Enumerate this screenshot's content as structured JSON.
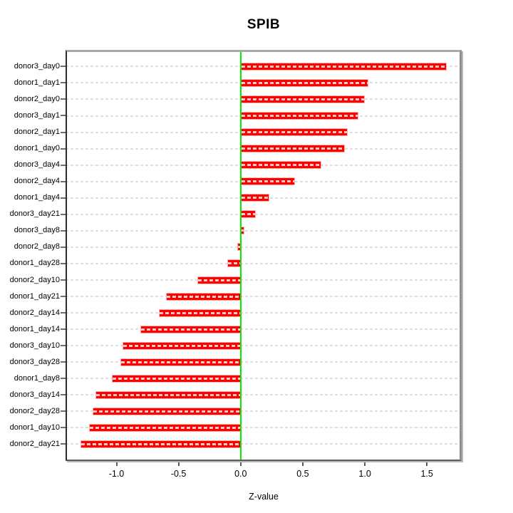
{
  "chart_data": {
    "type": "bar",
    "orientation": "horizontal",
    "title": "SPIB",
    "xlabel": "Z-value",
    "ylabel": "",
    "categories": [
      "donor3_day0",
      "donor1_day1",
      "donor2_day0",
      "donor3_day1",
      "donor2_day1",
      "donor1_day0",
      "donor3_day4",
      "donor2_day4",
      "donor1_day4",
      "donor3_day21",
      "donor3_day8",
      "donor2_day8",
      "donor1_day28",
      "donor2_day10",
      "donor1_day21",
      "donor2_day14",
      "donor1_day14",
      "donor3_day10",
      "donor3_day28",
      "donor1_day8",
      "donor3_day14",
      "donor2_day28",
      "donor1_day10",
      "donor2_day21"
    ],
    "values": [
      1.66,
      1.03,
      1.0,
      0.95,
      0.86,
      0.84,
      0.65,
      0.44,
      0.23,
      0.12,
      0.03,
      -0.03,
      -0.11,
      -0.35,
      -0.6,
      -0.66,
      -0.81,
      -0.95,
      -0.97,
      -1.04,
      -1.17,
      -1.19,
      -1.22,
      -1.29
    ],
    "xlim": [
      -1.41,
      1.78
    ],
    "xticks": [
      -1.0,
      -0.5,
      0.0,
      0.5,
      1.0,
      1.5
    ],
    "xtick_labels": [
      "-1.0",
      "-0.5",
      "0.0",
      "0.5",
      "1.0",
      "1.5"
    ],
    "grid": true,
    "legend": "none",
    "bar_color": "#ff0000",
    "bar_edge_color": "#ffb0b0",
    "zero_line_color": "#00ee00",
    "gridline_color": "#dedede"
  }
}
